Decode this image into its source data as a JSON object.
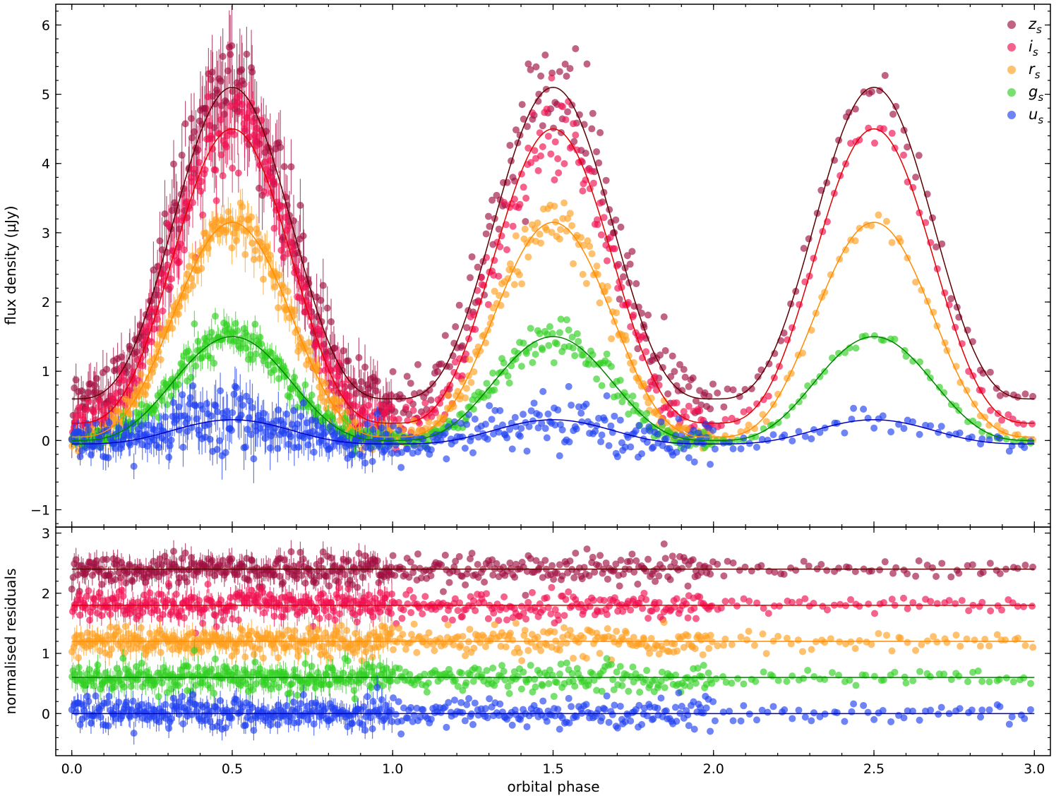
{
  "chart_data": [
    {
      "type": "scatter",
      "panel": "flux",
      "xlabel": "",
      "ylabel": "flux density (µJy)",
      "xlim": [
        -0.05,
        3.05
      ],
      "ylim": [
        -1.25,
        6.3
      ],
      "x_ticks": [
        "0.0",
        "0.5",
        "1.0",
        "1.5",
        "2.0",
        "2.5",
        "3.0"
      ],
      "y_ticks": [
        "−1",
        "0",
        "1",
        "2",
        "3",
        "4",
        "5",
        "6"
      ],
      "legend_placement": "top-right",
      "model": "sinusoidal light curve peaking at phase 0.5 each orbit",
      "series": [
        {
          "name": "z",
          "sub": "s",
          "color": "#a01040",
          "line_color": "#5a0000",
          "min": 0.6,
          "peak": 5.1,
          "scatter": 0.35
        },
        {
          "name": "i",
          "sub": "s",
          "color": "#f01050",
          "line_color": "#e00000",
          "min": 0.25,
          "peak": 4.5,
          "scatter": 0.25
        },
        {
          "name": "r",
          "sub": "s",
          "color": "#ffa020",
          "line_color": "#ff8c00",
          "min": 0.05,
          "peak": 3.15,
          "scatter": 0.15
        },
        {
          "name": "g",
          "sub": "s",
          "color": "#30d020",
          "line_color": "#008000",
          "min": 0.0,
          "peak": 1.5,
          "scatter": 0.12
        },
        {
          "name": "u",
          "sub": "s",
          "color": "#2040f0",
          "line_color": "#0000c0",
          "min": -0.05,
          "peak": 0.3,
          "scatter": 0.2
        }
      ]
    },
    {
      "type": "scatter",
      "panel": "residuals",
      "xlabel": "orbital phase",
      "ylabel": "normalised residuals",
      "xlim": [
        -0.05,
        3.05
      ],
      "ylim": [
        -0.7,
        3.1
      ],
      "x_ticks": [
        "0.0",
        "0.5",
        "1.0",
        "1.5",
        "2.0",
        "2.5",
        "3.0"
      ],
      "y_ticks": [
        "0",
        "1",
        "2",
        "3"
      ],
      "series": [
        {
          "name": "z",
          "offset": 2.4,
          "color": "#a01040",
          "line_color": "#5a0000"
        },
        {
          "name": "i",
          "offset": 1.8,
          "color": "#f01050",
          "line_color": "#e00000"
        },
        {
          "name": "r",
          "offset": 1.2,
          "color": "#ffa020",
          "line_color": "#ff8c00"
        },
        {
          "name": "g",
          "offset": 0.6,
          "color": "#30d020",
          "line_color": "#008000"
        },
        {
          "name": "u",
          "offset": 0.0,
          "color": "#2040f0",
          "line_color": "#0000c0"
        }
      ]
    }
  ]
}
